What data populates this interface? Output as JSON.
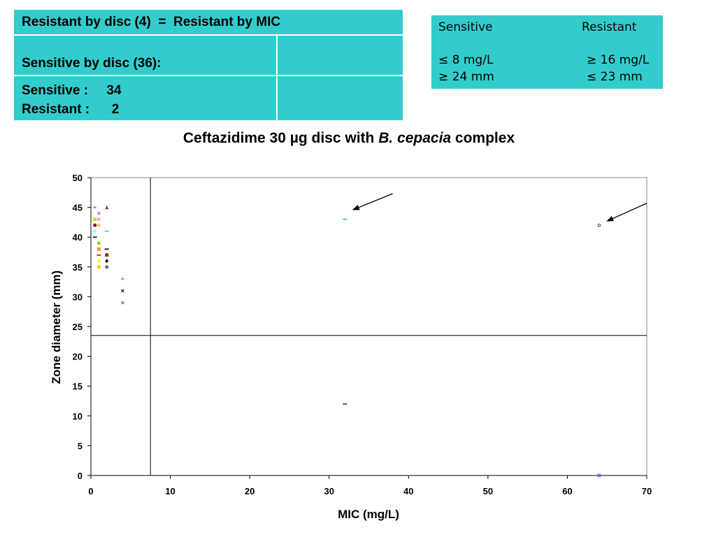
{
  "summary_table": {
    "row1": "Resistant by disc (4)  =  Resistant by MIC",
    "row2": "Sensitive by disc (36):",
    "row3_line1": "Sensitive :     34",
    "row3_line2": "Resistant :      2"
  },
  "breakpoints": {
    "sensitive_header": "Sensitive",
    "resistant_header": "Resistant",
    "sensitive_mic": "≤ 8 mg/L",
    "resistant_mic": "≥ 16 mg/L",
    "sensitive_zone": "≥ 24 mm",
    "resistant_zone": "≤ 23 mm"
  },
  "title": {
    "prefix": "Ceftazidime 30 µg disc with ",
    "organism": "B. cepacia",
    "suffix": " complex"
  },
  "chart_data": {
    "type": "scatter",
    "xlabel": "MIC (mg/L)",
    "ylabel": "Zone diameter (mm)",
    "xlim": [
      0,
      70
    ],
    "ylim": [
      0,
      50
    ],
    "xticks": [
      0,
      10,
      20,
      30,
      40,
      50,
      60,
      70
    ],
    "yticks": [
      0,
      5,
      10,
      15,
      20,
      25,
      30,
      35,
      40,
      45,
      50
    ],
    "grid": false,
    "reference_lines": {
      "mic": 7.5,
      "zone": 23.5
    },
    "points": [
      {
        "x": 0.5,
        "y": 45,
        "marker": "plus",
        "color": "#3366ff"
      },
      {
        "x": 1,
        "y": 44,
        "marker": "x",
        "color": "#6666ff"
      },
      {
        "x": 1,
        "y": 43,
        "marker": "x",
        "color": "#ff66cc"
      },
      {
        "x": 0.5,
        "y": 43,
        "marker": "square",
        "color": "#ffcc00"
      },
      {
        "x": 0.5,
        "y": 42,
        "marker": "circle",
        "color": "#990033"
      },
      {
        "x": 1,
        "y": 42,
        "marker": "circle",
        "color": "#ffcc66"
      },
      {
        "x": 2,
        "y": 45,
        "marker": "triangle",
        "color": "#993366"
      },
      {
        "x": 0.5,
        "y": 41,
        "marker": "circle",
        "color": "#99ffff"
      },
      {
        "x": 2,
        "y": 41,
        "marker": "dash",
        "color": "#33cccc"
      },
      {
        "x": 0.5,
        "y": 40,
        "marker": "dash",
        "color": "#000080"
      },
      {
        "x": 1,
        "y": 39,
        "marker": "circle",
        "color": "#99cc00"
      },
      {
        "x": 1,
        "y": 38,
        "marker": "square",
        "color": "#ff9900"
      },
      {
        "x": 2,
        "y": 38,
        "marker": "dash",
        "color": "#000000"
      },
      {
        "x": 1,
        "y": 37,
        "marker": "dash",
        "color": "#cc0000"
      },
      {
        "x": 2,
        "y": 37,
        "marker": "square",
        "color": "#993300"
      },
      {
        "x": 2,
        "y": 36,
        "marker": "diamond",
        "color": "#000000"
      },
      {
        "x": 1,
        "y": 36,
        "marker": "diamond",
        "color": "#ffff00"
      },
      {
        "x": 1,
        "y": 35,
        "marker": "square",
        "color": "#ffcc00"
      },
      {
        "x": 2,
        "y": 35,
        "marker": "circle",
        "color": "#666699"
      },
      {
        "x": 4,
        "y": 33,
        "marker": "plus",
        "color": "#ff3333"
      },
      {
        "x": 4,
        "y": 31,
        "marker": "x",
        "color": "#000000"
      },
      {
        "x": 4,
        "y": 29,
        "marker": "x",
        "color": "#555555"
      },
      {
        "x": 32,
        "y": 43,
        "marker": "dash",
        "color": "#33cc33"
      },
      {
        "x": 64,
        "y": 42,
        "marker": "open-circle",
        "color": "#000000"
      },
      {
        "x": 32,
        "y": 12,
        "marker": "dash",
        "color": "#0033cc"
      },
      {
        "x": 64,
        "y": 0,
        "marker": "square",
        "color": "#cc66ff"
      },
      {
        "x": 64,
        "y": 0,
        "marker": "dash",
        "color": "#3366ff"
      }
    ],
    "arrows": [
      {
        "from": [
          38,
          47.3
        ],
        "to": [
          33,
          44.6
        ]
      },
      {
        "from": [
          70,
          45.7
        ],
        "to": [
          65,
          42.7
        ]
      }
    ]
  }
}
